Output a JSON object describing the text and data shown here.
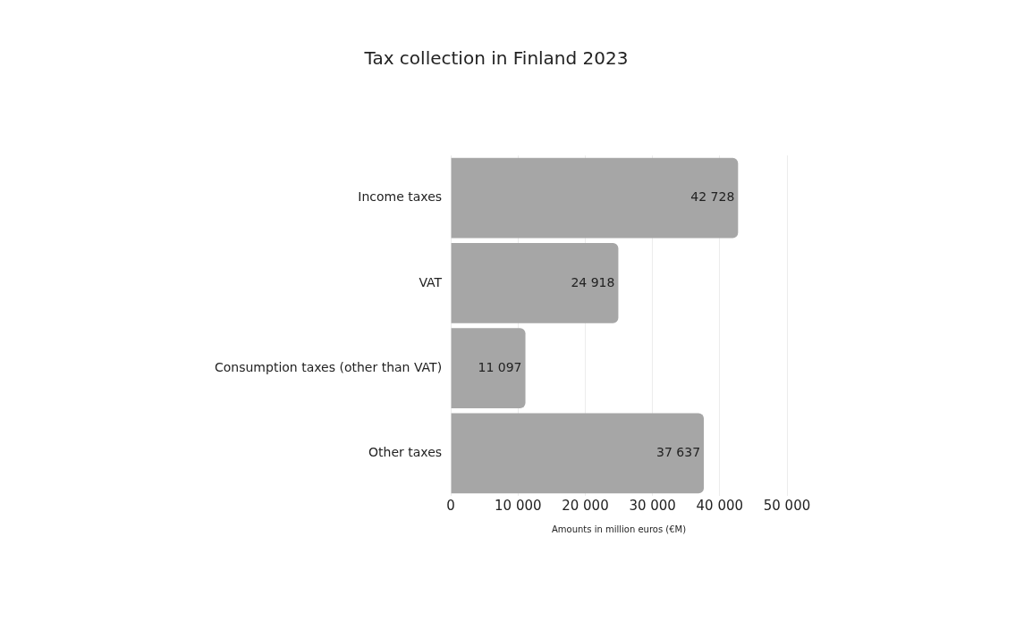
{
  "chart_data": {
    "type": "bar",
    "orientation": "horizontal",
    "title": "Tax collection in Finland 2023",
    "xlabel": "Amounts in million euros (€M)",
    "categories": [
      "Income taxes",
      "VAT",
      "Consumption taxes (other than VAT)",
      "Other taxes"
    ],
    "values": [
      42728,
      24918,
      11097,
      37637
    ],
    "color": "#a6a6a6",
    "value_labels": [
      "42 728",
      "24 918",
      "11 097",
      "37 637"
    ],
    "xlim": [
      0,
      50000
    ],
    "xticks": [
      0,
      {
        "value": 10000,
        "label": "10 000"
      },
      {
        "value": 20000,
        "label": "20 000"
      },
      {
        "value": 30000,
        "label": "30 000"
      },
      {
        "value": 40000,
        "label": "40 000"
      },
      {
        "value": 50000,
        "label": "50 000"
      }
    ],
    "grid": "x",
    "legend": false
  }
}
